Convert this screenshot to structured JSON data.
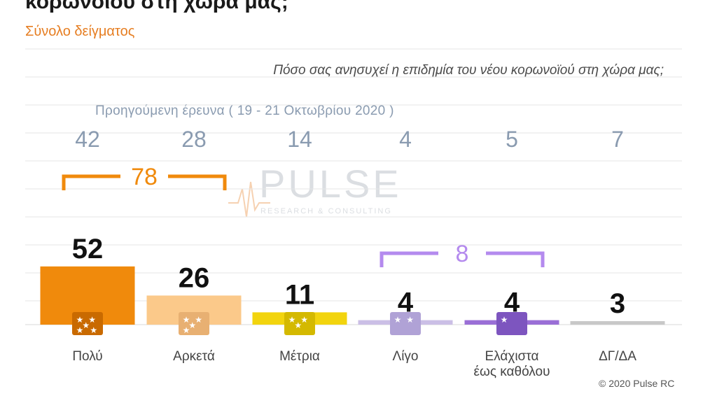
{
  "header": {
    "title": "κορωνοϊού στη χώρα μας;",
    "subtitle": "Σύνολο δείγματος",
    "question": "Πόσο σας ανησυχεί η επιδημία του νέου κορωνοϊού στη χώρα μας;",
    "previous_survey_label": "Προηγούμενη έρευνα  ( 19 - 21  Οκτωβρίου  2020 )"
  },
  "watermark": {
    "brand": "PULSE",
    "tagline": "RESEARCH & CONSULTING"
  },
  "footer": {
    "copyright": "© 2020 Pulse RC"
  },
  "colors": {
    "orange": "#f08a0c",
    "light_orange": "#fbc98a",
    "yellow": "#f2d40e",
    "light_purple": "#cbbfe6",
    "purple": "#9a6fd6",
    "grey": "#c8c8c8",
    "previous_text": "#8a9bb0"
  },
  "chart_data": {
    "type": "bar",
    "categories": [
      "Πολύ",
      "Αρκετά",
      "Μέτρια",
      "Λίγο",
      "Ελάχιστα\nέως καθόλου",
      "ΔΓ/ΔΑ"
    ],
    "values": [
      52,
      26,
      11,
      4,
      4,
      3
    ],
    "previous_values": [
      42,
      28,
      14,
      4,
      5,
      7
    ],
    "bar_colors": [
      "#f08a0c",
      "#fbc98a",
      "#f2d40e",
      "#cbbfe6",
      "#9a6fd6",
      "#c8c8c8"
    ],
    "star_icons": [
      "five-stars",
      "four-stars",
      "three-stars",
      "two-stars",
      "one-star",
      "none"
    ],
    "groupings": [
      {
        "value": 78,
        "from": 0,
        "to": 1,
        "color": "#f08a0c"
      },
      {
        "value": 8,
        "from": 3,
        "to": 4,
        "color": "#b48aee"
      }
    ],
    "ylim": [
      0,
      60
    ],
    "grid": true
  }
}
